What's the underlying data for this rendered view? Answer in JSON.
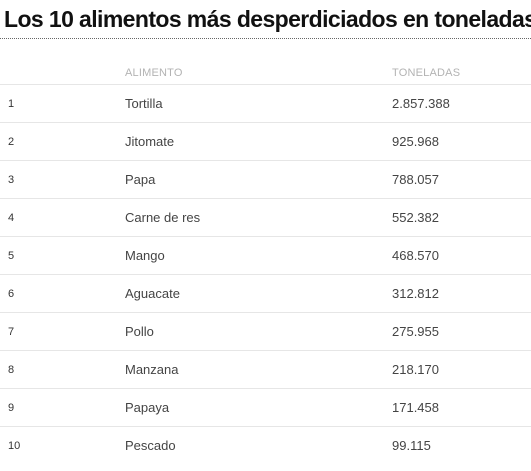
{
  "title": "Los 10 alimentos más desperdiciados en toneladas",
  "table": {
    "columns": [
      "",
      "ALIMENTO",
      "TONELADAS"
    ],
    "rows": [
      {
        "rank": "1",
        "food": "Tortilla",
        "tons": "2.857.388"
      },
      {
        "rank": "2",
        "food": "Jitomate",
        "tons": "925.968"
      },
      {
        "rank": "3",
        "food": "Papa",
        "tons": "788.057"
      },
      {
        "rank": "4",
        "food": "Carne de res",
        "tons": "552.382"
      },
      {
        "rank": "5",
        "food": "Mango",
        "tons": "468.570"
      },
      {
        "rank": "6",
        "food": "Aguacate",
        "tons": "312.812"
      },
      {
        "rank": "7",
        "food": "Pollo",
        "tons": "275.955"
      },
      {
        "rank": "8",
        "food": "Manzana",
        "tons": "218.170"
      },
      {
        "rank": "9",
        "food": "Papaya",
        "tons": "171.458"
      },
      {
        "rank": "10",
        "food": "Pescado",
        "tons": "99.115"
      }
    ]
  },
  "chart_data": {
    "type": "table",
    "title": "Los 10 alimentos más desperdiciados en toneladas",
    "columns": [
      "",
      "ALIMENTO",
      "TONELADAS"
    ],
    "categories": [
      "Tortilla",
      "Jitomate",
      "Papa",
      "Carne de res",
      "Mango",
      "Aguacate",
      "Pollo",
      "Manzana",
      "Papaya",
      "Pescado"
    ],
    "values": [
      2857388,
      925968,
      788057,
      552382,
      468570,
      312812,
      275955,
      218170,
      171458,
      99115
    ]
  }
}
